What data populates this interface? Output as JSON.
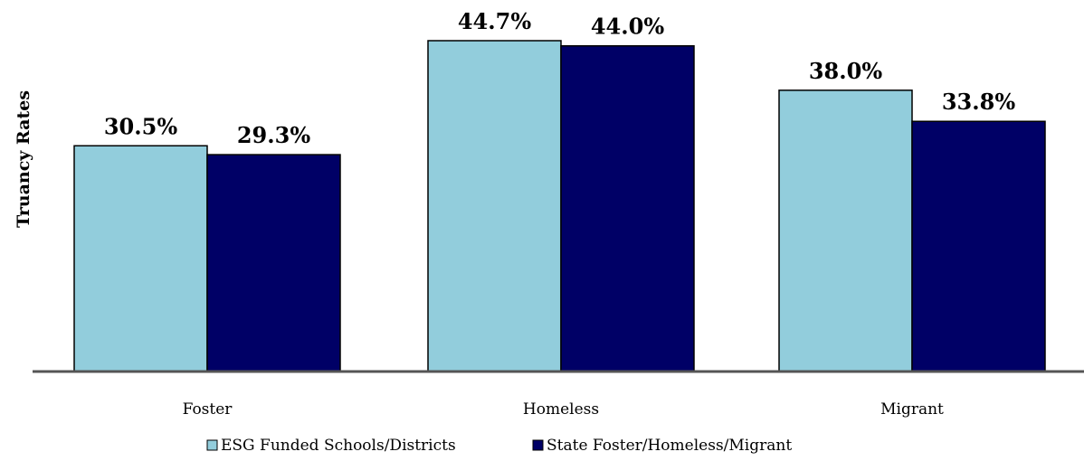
{
  "chart_data": {
    "type": "bar",
    "title": "",
    "xlabel": "",
    "ylabel": "Truancy Rates",
    "categories": [
      "Foster",
      "Homeless",
      "Migrant"
    ],
    "series": [
      {
        "name": "ESG Funded Schools/Districts",
        "values": [
          30.5,
          44.7,
          38.0
        ],
        "labels": [
          "30.5%",
          "44.7%",
          "38.0%"
        ]
      },
      {
        "name": "State Foster/Homeless/Migrant",
        "values": [
          29.3,
          44.0,
          33.8
        ],
        "labels": [
          "29.3%",
          "44.0%",
          "33.8%"
        ]
      }
    ],
    "ylim": [
      0,
      50
    ],
    "grid": false,
    "legend": "bottom",
    "colors": [
      "#92cddc",
      "#000066"
    ]
  }
}
